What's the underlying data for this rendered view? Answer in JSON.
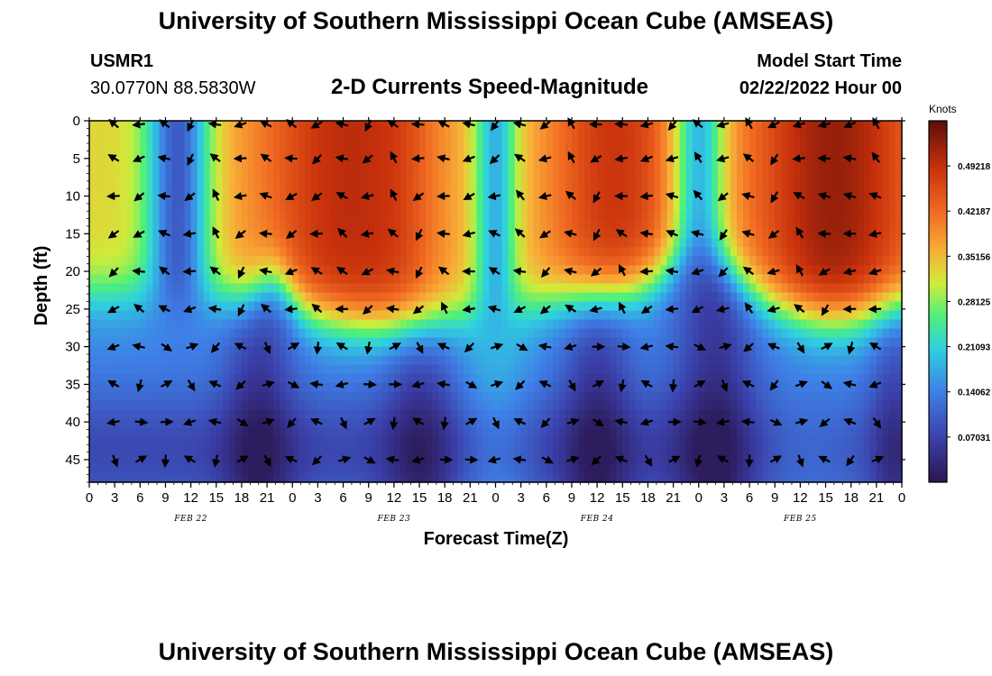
{
  "title": "University of Southern Mississippi Ocean Cube (AMSEAS)",
  "station": {
    "id": "USMR1",
    "coords": "30.0770N  88.5830W"
  },
  "model": {
    "label": "Model Start Time",
    "start": "02/22/2022 Hour 00"
  },
  "chart_data": {
    "type": "heatmap",
    "title": "2-D Currents Speed-Magnitude",
    "xlabel": "Forecast Time(Z)",
    "ylabel": "Depth (ft)",
    "x_range_hours": [
      0,
      96
    ],
    "y_range_ft": [
      0,
      48
    ],
    "x_ticks": [
      "0",
      "3",
      "6",
      "9",
      "12",
      "15",
      "18",
      "21",
      "0",
      "3",
      "6",
      "9",
      "12",
      "15",
      "18",
      "21",
      "0",
      "3",
      "6",
      "9",
      "12",
      "15",
      "18",
      "21",
      "0",
      "3",
      "6",
      "9",
      "12",
      "15",
      "18",
      "21",
      "0"
    ],
    "date_labels": [
      "FEB 22",
      "FEB 23",
      "FEB 24",
      "FEB 25"
    ],
    "y_ticks": [
      "0",
      "5",
      "10",
      "15",
      "20",
      "25",
      "30",
      "35",
      "40",
      "45"
    ],
    "colorbar": {
      "units": "Knots",
      "range": [
        0,
        0.5624
      ],
      "tick_labels": [
        "0.07031",
        "0.14062",
        "0.21093",
        "0.28125",
        "0.35156",
        "0.42187",
        "0.49218"
      ],
      "tick_values": [
        0.07031,
        0.14062,
        0.21093,
        0.28125,
        0.35156,
        0.42187,
        0.49218
      ]
    },
    "arrow_grid": {
      "time_step_hours": 3,
      "depth_step_ft": 5,
      "depths_ft": [
        0,
        5,
        10,
        15,
        20,
        25,
        30,
        35,
        40,
        45
      ]
    }
  },
  "footer_title": "University of Southern Mississippi Ocean Cube (AMSEAS)"
}
